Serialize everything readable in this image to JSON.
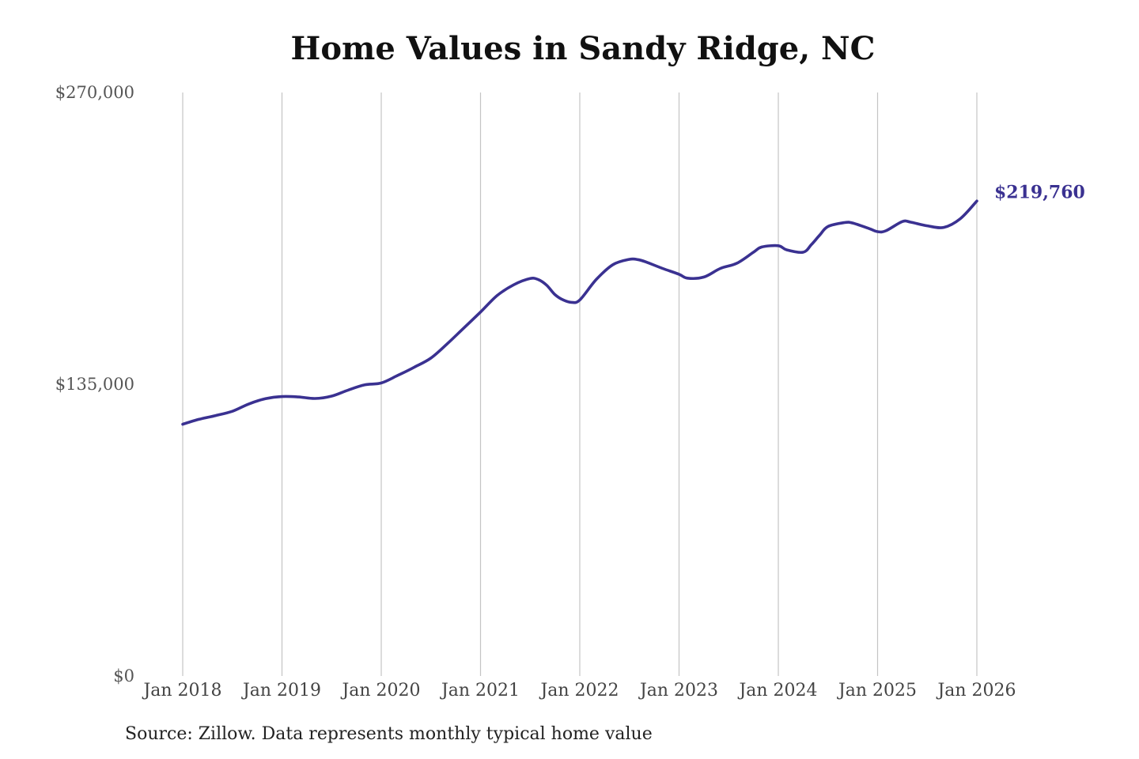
{
  "colors": {
    "series": "#3a3191",
    "grid": "#c4c4c4",
    "title": "#111111",
    "axis_text": "#555555"
  },
  "source_note": "Source: Zillow. Data represents monthly typical home value",
  "chart_data": {
    "type": "line",
    "title": "Home Values in Sandy Ridge, NC",
    "xlabel": "",
    "ylabel": "",
    "ylim": [
      0,
      270000
    ],
    "xlim": [
      "2018-01",
      "2026-01"
    ],
    "y_ticks": [
      {
        "value": 270000,
        "label": "$270,000"
      },
      {
        "value": 135000,
        "label": "$135,000"
      },
      {
        "value": 0,
        "label": "$0"
      }
    ],
    "x_ticks": [
      {
        "value": "2018-01",
        "label": "Jan 2018"
      },
      {
        "value": "2019-01",
        "label": "Jan 2019"
      },
      {
        "value": "2020-01",
        "label": "Jan 2020"
      },
      {
        "value": "2021-01",
        "label": "Jan 2021"
      },
      {
        "value": "2022-01",
        "label": "Jan 2022"
      },
      {
        "value": "2023-01",
        "label": "Jan 2023"
      },
      {
        "value": "2024-01",
        "label": "Jan 2024"
      },
      {
        "value": "2025-01",
        "label": "Jan 2025"
      },
      {
        "value": "2026-01",
        "label": "Jan 2026"
      }
    ],
    "grid": "vertical",
    "legend": "none",
    "end_label": "$219,760",
    "series": [
      {
        "x": [
          "2018-01",
          "2018-03",
          "2018-05",
          "2018-07",
          "2018-09",
          "2018-11",
          "2019-01",
          "2019-03",
          "2019-05",
          "2019-07",
          "2019-09",
          "2019-11",
          "2020-01",
          "2020-03",
          "2020-05",
          "2020-07",
          "2020-09",
          "2020-11",
          "2021-01",
          "2021-03",
          "2021-05",
          "2021-07",
          "2021-08",
          "2021-09",
          "2021-10",
          "2021-11",
          "2021-12",
          "2022-01",
          "2022-03",
          "2022-05",
          "2022-07",
          "2022-08",
          "2022-09",
          "2022-11",
          "2023-01",
          "2023-02",
          "2023-04",
          "2023-06",
          "2023-08",
          "2023-10",
          "2023-11",
          "2024-01",
          "2024-02",
          "2024-04",
          "2024-05",
          "2024-06",
          "2024-07",
          "2024-09",
          "2024-10",
          "2024-12",
          "2025-01",
          "2025-02",
          "2025-04",
          "2025-05",
          "2025-07",
          "2025-09",
          "2025-11",
          "2026-01"
        ],
        "y": [
          116500,
          118800,
          120500,
          122500,
          125900,
          128300,
          129300,
          129100,
          128400,
          129500,
          132300,
          134700,
          135600,
          139100,
          142900,
          147100,
          153800,
          161100,
          168400,
          176000,
          181000,
          183900,
          183400,
          180800,
          176500,
          174000,
          172900,
          174000,
          183500,
          190300,
          192800,
          192700,
          191600,
          188600,
          185900,
          184100,
          184600,
          188600,
          191000,
          196100,
          198500,
          199100,
          197200,
          196100,
          199600,
          204000,
          208000,
          209800,
          209600,
          207000,
          205600,
          206000,
          210300,
          210000,
          208300,
          207600,
          211600,
          219760
        ]
      }
    ]
  }
}
